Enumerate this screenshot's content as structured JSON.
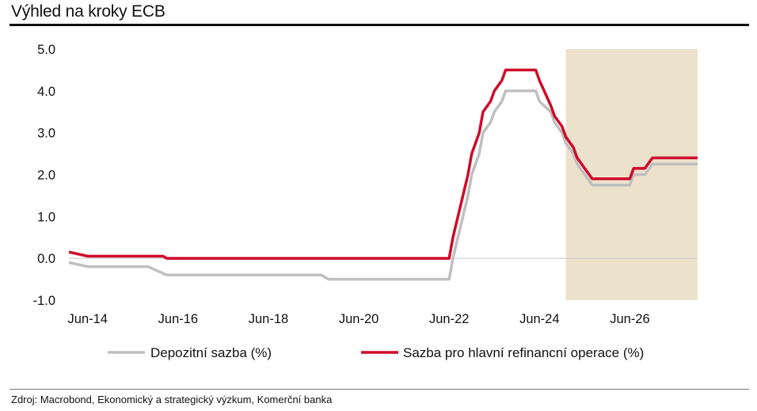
{
  "title": "Výhled na kroky ECB",
  "source": "Zdroj: Macrobond, Ekonomický a strategický výzkum, Komerční banka",
  "chart_data": {
    "type": "line",
    "title": "Výhled na kroky ECB",
    "xlabel": "",
    "ylabel": "",
    "ylim": [
      -1.0,
      5.0
    ],
    "yticks": [
      "5.0",
      "4.0",
      "3.0",
      "2.0",
      "1.0",
      "0.0",
      "-1.0"
    ],
    "xticks": [
      "Jun-14",
      "Jun-16",
      "Jun-18",
      "Jun-20",
      "Jun-22",
      "Jun-24",
      "Jun-26"
    ],
    "grid": false,
    "legend_position": "bottom",
    "forecast_shading": {
      "from": "2025-01",
      "to": "2027-12",
      "color": "#ece2cc"
    },
    "series": [
      {
        "name": "Depozitní sazba (%)",
        "color": "#bfbfbf",
        "points": [
          [
            "2014-01",
            -0.1
          ],
          [
            "2014-06",
            -0.2
          ],
          [
            "2015-10",
            -0.2
          ],
          [
            "2016-03",
            -0.4
          ],
          [
            "2019-08",
            -0.4
          ],
          [
            "2019-10",
            -0.5
          ],
          [
            "2022-06",
            -0.5
          ],
          [
            "2022-07",
            0.0
          ],
          [
            "2022-09",
            0.75
          ],
          [
            "2022-11",
            1.5
          ],
          [
            "2022-12",
            2.0
          ],
          [
            "2023-02",
            2.5
          ],
          [
            "2023-03",
            3.0
          ],
          [
            "2023-05",
            3.25
          ],
          [
            "2023-06",
            3.5
          ],
          [
            "2023-08",
            3.75
          ],
          [
            "2023-09",
            4.0
          ],
          [
            "2024-05",
            4.0
          ],
          [
            "2024-06",
            3.75
          ],
          [
            "2024-09",
            3.5
          ],
          [
            "2024-10",
            3.25
          ],
          [
            "2024-12",
            3.0
          ],
          [
            "2025-01",
            2.75
          ],
          [
            "2025-03",
            2.5
          ],
          [
            "2025-04",
            2.25
          ],
          [
            "2025-06",
            2.0
          ],
          [
            "2025-08",
            1.75
          ],
          [
            "2026-06",
            1.75
          ],
          [
            "2026-07",
            2.0
          ],
          [
            "2026-10",
            2.0
          ],
          [
            "2026-12",
            2.25
          ],
          [
            "2027-12",
            2.25
          ]
        ]
      },
      {
        "name": "Sazba pro hlavní refinancní operace (%)",
        "color": "#cf0b2b",
        "points": [
          [
            "2014-01",
            0.15
          ],
          [
            "2014-06",
            0.05
          ],
          [
            "2016-02",
            0.05
          ],
          [
            "2016-03",
            0.0
          ],
          [
            "2022-06",
            0.0
          ],
          [
            "2022-07",
            0.5
          ],
          [
            "2022-09",
            1.25
          ],
          [
            "2022-11",
            2.0
          ],
          [
            "2022-12",
            2.5
          ],
          [
            "2023-02",
            3.0
          ],
          [
            "2023-03",
            3.5
          ],
          [
            "2023-05",
            3.75
          ],
          [
            "2023-06",
            4.0
          ],
          [
            "2023-08",
            4.25
          ],
          [
            "2023-09",
            4.5
          ],
          [
            "2024-05",
            4.5
          ],
          [
            "2024-06",
            4.25
          ],
          [
            "2024-09",
            3.65
          ],
          [
            "2024-10",
            3.4
          ],
          [
            "2024-12",
            3.15
          ],
          [
            "2025-01",
            2.9
          ],
          [
            "2025-03",
            2.65
          ],
          [
            "2025-04",
            2.4
          ],
          [
            "2025-06",
            2.15
          ],
          [
            "2025-08",
            1.9
          ],
          [
            "2026-06",
            1.9
          ],
          [
            "2026-07",
            2.15
          ],
          [
            "2026-10",
            2.15
          ],
          [
            "2026-12",
            2.4
          ],
          [
            "2027-12",
            2.4
          ]
        ]
      }
    ]
  }
}
